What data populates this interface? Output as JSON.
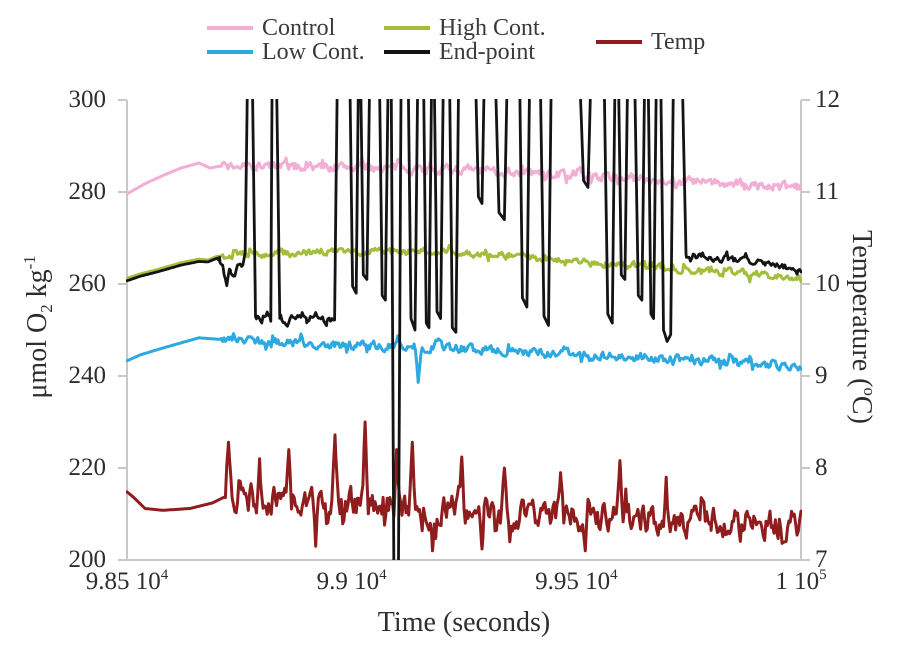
{
  "chart_data": {
    "type": "line",
    "title": "",
    "x_label_parts": [
      {
        "t": "Time (seconds)"
      }
    ],
    "x_range": [
      98500,
      100000
    ],
    "x_ticks": [
      {
        "v": 98500,
        "parts": [
          {
            "t": "9.85 10"
          },
          {
            "sup": "4"
          }
        ]
      },
      {
        "v": 99000,
        "parts": [
          {
            "t": "9.9 10"
          },
          {
            "sup": "4"
          }
        ]
      },
      {
        "v": 99500,
        "parts": [
          {
            "t": "9.95 10"
          },
          {
            "sup": "4"
          }
        ]
      },
      {
        "v": 100000,
        "parts": [
          {
            "t": "1 10"
          },
          {
            "sup": "5"
          }
        ]
      }
    ],
    "y_left": {
      "label_parts": [
        {
          "t": "μmol O"
        },
        {
          "sub": "2"
        },
        {
          "t": " kg"
        },
        {
          "sup": "-1"
        }
      ],
      "range": [
        200,
        300
      ],
      "ticks": [
        {
          "v": 300,
          "label": "300"
        },
        {
          "v": 280,
          "label": "280"
        },
        {
          "v": 260,
          "label": "260"
        },
        {
          "v": 240,
          "label": "240"
        },
        {
          "v": 220,
          "label": "220"
        },
        {
          "v": 200,
          "label": "200"
        }
      ]
    },
    "y_right": {
      "label_parts": [
        {
          "t": "Temperature ("
        },
        {
          "sup": "o"
        },
        {
          "t": "C)"
        }
      ],
      "range": [
        7,
        12
      ],
      "ticks": [
        {
          "v": 12,
          "label": "12"
        },
        {
          "v": 11,
          "label": "11"
        },
        {
          "v": 10,
          "label": "10"
        },
        {
          "v": 9,
          "label": "9"
        },
        {
          "v": 8,
          "label": "8"
        },
        {
          "v": 7,
          "label": "7"
        }
      ]
    },
    "grid": false,
    "legend_position": "top",
    "axis_color": "#c8c8c8",
    "noise_seed": 7,
    "draw_order": [
      0,
      4,
      1,
      2,
      3
    ],
    "series": [
      {
        "name": "Control",
        "color": "#F2AED3",
        "axis": "left",
        "width": 3,
        "anchors": [
          [
            98500,
            279.6
          ],
          [
            98540,
            281.8
          ],
          [
            98580,
            283.6
          ],
          [
            98620,
            285.2
          ],
          [
            98660,
            286.3
          ],
          [
            98685,
            285.2
          ],
          [
            98705,
            285.6
          ],
          [
            98800,
            285.6
          ],
          [
            99000,
            285.4
          ],
          [
            99200,
            285.0
          ],
          [
            99400,
            284.2
          ],
          [
            99600,
            283.2
          ],
          [
            99800,
            282.0
          ],
          [
            100000,
            280.8
          ]
        ],
        "noise": [
          {
            "from": 98712,
            "to": 100000,
            "amp": 1.6
          }
        ],
        "spikes": []
      },
      {
        "name": "Low Cont.",
        "color": "#2BA9E0",
        "axis": "left",
        "width": 3,
        "anchors": [
          [
            98500,
            243.3
          ],
          [
            98530,
            244.6
          ],
          [
            98570,
            245.8
          ],
          [
            98620,
            247.2
          ],
          [
            98660,
            248.3
          ],
          [
            98700,
            248.0
          ],
          [
            98800,
            247.6
          ],
          [
            99000,
            246.8
          ],
          [
            99200,
            246.2
          ],
          [
            99400,
            245.2
          ],
          [
            99600,
            244.2
          ],
          [
            99800,
            243.2
          ],
          [
            100000,
            242.0
          ]
        ],
        "noise": [
          {
            "from": 98710,
            "to": 100000,
            "amp": 1.5
          }
        ],
        "spikes": [
          [
            99148,
            238.6,
            7
          ]
        ]
      },
      {
        "name": "High Cont.",
        "color": "#A2BE3B",
        "axis": "left",
        "width": 3,
        "anchors": [
          [
            98500,
            261.2
          ],
          [
            98530,
            262.2
          ],
          [
            98570,
            263.2
          ],
          [
            98620,
            264.6
          ],
          [
            98660,
            265.4
          ],
          [
            98680,
            265.2
          ],
          [
            98700,
            266.0
          ],
          [
            98800,
            266.6
          ],
          [
            99000,
            267.2
          ],
          [
            99200,
            266.8
          ],
          [
            99350,
            266.2
          ],
          [
            99500,
            264.8
          ],
          [
            99650,
            263.8
          ],
          [
            99800,
            262.8
          ],
          [
            100000,
            261.4
          ]
        ],
        "noise": [
          {
            "from": 98712,
            "to": 100000,
            "amp": 1.25
          }
        ],
        "spikes": []
      },
      {
        "name": "End-point",
        "color": "#141414",
        "axis": "left",
        "width": 2.8,
        "anchors": [
          [
            98500,
            260.7
          ],
          [
            98530,
            261.7
          ],
          [
            98570,
            262.7
          ],
          [
            98620,
            264.1
          ],
          [
            98660,
            264.9
          ],
          [
            98680,
            264.8
          ],
          [
            98700,
            265.6
          ],
          [
            98706,
            265.0
          ],
          [
            98715,
            263.0
          ],
          [
            98722,
            259.0
          ],
          [
            98730,
            263.5
          ],
          [
            98738,
            261.0
          ],
          [
            98746,
            264.5
          ],
          [
            98755,
            263.0
          ],
          [
            98763,
            266.0
          ],
          [
            98768,
            304
          ],
          [
            98779,
            304
          ],
          [
            98786,
            253.0
          ],
          [
            98800,
            251.5
          ],
          [
            98812,
            253.5
          ],
          [
            98820,
            252.0
          ],
          [
            98823,
            304
          ],
          [
            98833,
            304
          ],
          [
            98840,
            252.5
          ],
          [
            98860,
            251.5
          ],
          [
            98880,
            253.5
          ],
          [
            98900,
            252.0
          ],
          [
            98920,
            253.0
          ],
          [
            98945,
            251.5
          ],
          [
            98962,
            253.0
          ],
          [
            98968,
            304
          ],
          [
            98996,
            304
          ],
          [
            99002,
            259.5
          ],
          [
            99010,
            258.0
          ],
          [
            99015,
            304
          ],
          [
            99020,
            304
          ],
          [
            99026,
            262.0
          ],
          [
            99034,
            261.0
          ],
          [
            99040,
            304
          ],
          [
            99062,
            304
          ],
          [
            99068,
            257.5
          ],
          [
            99075,
            256.5
          ],
          [
            99081,
            304
          ],
          [
            99088,
            304
          ],
          [
            99094,
            196
          ],
          [
            99099,
            195
          ],
          [
            99104,
            196
          ],
          [
            99110,
            304
          ],
          [
            99126,
            304
          ],
          [
            99132,
            252.5
          ],
          [
            99141,
            250.0
          ],
          [
            99147,
            304
          ],
          [
            99160,
            304
          ],
          [
            99166,
            251.5
          ],
          [
            99172,
            250.5
          ],
          [
            99178,
            304
          ],
          [
            99184,
            304
          ],
          [
            99190,
            254.0
          ],
          [
            99198,
            252.5
          ],
          [
            99204,
            304
          ],
          [
            99218,
            304
          ],
          [
            99224,
            250.5
          ],
          [
            99232,
            249.5
          ],
          [
            99238,
            304
          ],
          [
            99276,
            304
          ],
          [
            99282,
            279.0
          ],
          [
            99290,
            277.5
          ],
          [
            99295,
            304
          ],
          [
            99320,
            304
          ],
          [
            99328,
            275.5
          ],
          [
            99340,
            274.0
          ],
          [
            99346,
            304
          ],
          [
            99374,
            304
          ],
          [
            99380,
            257.0
          ],
          [
            99390,
            255.0
          ],
          [
            99396,
            304
          ],
          [
            99420,
            304
          ],
          [
            99428,
            253.0
          ],
          [
            99438,
            251.0
          ],
          [
            99444,
            304
          ],
          [
            99508,
            304
          ],
          [
            99516,
            282.5
          ],
          [
            99526,
            281.0
          ],
          [
            99532,
            304
          ],
          [
            99562,
            304
          ],
          [
            99570,
            253.5
          ],
          [
            99580,
            251.5
          ],
          [
            99586,
            304
          ],
          [
            99594,
            304
          ],
          [
            99600,
            262.0
          ],
          [
            99608,
            261.0
          ],
          [
            99614,
            304
          ],
          [
            99630,
            304
          ],
          [
            99638,
            257.5
          ],
          [
            99646,
            256.5
          ],
          [
            99652,
            304
          ],
          [
            99660,
            304
          ],
          [
            99666,
            253.5
          ],
          [
            99672,
            252.5
          ],
          [
            99678,
            304
          ],
          [
            99688,
            304
          ],
          [
            99694,
            250.0
          ],
          [
            99702,
            247.5
          ],
          [
            99710,
            249.0
          ],
          [
            99716,
            304
          ],
          [
            99736,
            304
          ],
          [
            99744,
            266.5
          ],
          [
            99780,
            266.0
          ],
          [
            99850,
            265.2
          ],
          [
            99920,
            264.4
          ],
          [
            100000,
            263.2
          ]
        ],
        "noise": [
          {
            "from": 98706,
            "to": 98766,
            "amp": 1.5
          },
          {
            "from": 98784,
            "to": 98964,
            "amp": 1.3
          },
          {
            "from": 99744,
            "to": 100000,
            "amp": 1.1
          }
        ],
        "spikes": []
      },
      {
        "name": "Temp",
        "color": "#8F1D1E",
        "axis": "right",
        "width": 3,
        "anchors": [
          [
            98500,
            7.74
          ],
          [
            98515,
            7.68
          ],
          [
            98540,
            7.56
          ],
          [
            98580,
            7.54
          ],
          [
            98640,
            7.56
          ],
          [
            98690,
            7.62
          ],
          [
            98715,
            7.68
          ],
          [
            98800,
            7.67
          ],
          [
            99000,
            7.62
          ],
          [
            99200,
            7.56
          ],
          [
            99400,
            7.5
          ],
          [
            99600,
            7.45
          ],
          [
            99800,
            7.42
          ],
          [
            100000,
            7.38
          ]
        ],
        "noise": [
          {
            "from": 98720,
            "to": 100000,
            "amp": 0.24
          }
        ],
        "spikes": [
          [
            98726,
            8.28,
            7
          ],
          [
            98795,
            8.1,
            6
          ],
          [
            98860,
            8.2,
            6
          ],
          [
            98920,
            7.15,
            5
          ],
          [
            98963,
            8.36,
            7
          ],
          [
            99030,
            8.5,
            7
          ],
          [
            99100,
            8.2,
            6
          ],
          [
            99135,
            8.28,
            6
          ],
          [
            99180,
            7.1,
            5
          ],
          [
            99245,
            8.12,
            6
          ],
          [
            99290,
            7.12,
            5
          ],
          [
            99340,
            8.0,
            6
          ],
          [
            99465,
            7.95,
            6
          ],
          [
            99520,
            7.1,
            5
          ],
          [
            99597,
            8.08,
            7
          ],
          [
            99700,
            7.9,
            6
          ]
        ]
      }
    ]
  }
}
